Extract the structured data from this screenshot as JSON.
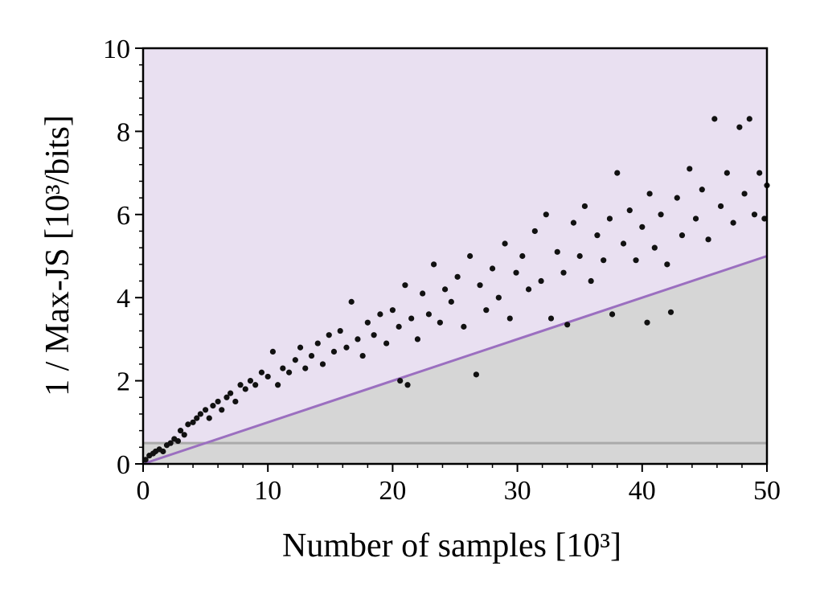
{
  "chart_data": {
    "type": "scatter",
    "x_label": "Number of samples [10³]",
    "y_label": "1 / Max-JS [10³/bits]",
    "color": "#111111",
    "region_above_color": "#e9e0f1",
    "region_below_color": "#d6d6d6",
    "reference_line": {
      "x": [
        0,
        50
      ],
      "y": [
        0,
        5
      ],
      "color": "#9b6fc0"
    },
    "threshold": {
      "value": 0.5,
      "color": "#aaaaaa"
    },
    "x": [
      0.2,
      0.5,
      0.8,
      1.0,
      1.3,
      1.6,
      1.9,
      2.2,
      2.5,
      2.8,
      3.0,
      3.3,
      3.6,
      4.0,
      4.3,
      4.6,
      5.0,
      5.3,
      5.6,
      6.0,
      6.3,
      6.7,
      7.0,
      7.4,
      7.8,
      8.2,
      8.6,
      9.0,
      9.5,
      10.0,
      10.4,
      10.8,
      11.2,
      11.7,
      12.2,
      12.6,
      13.0,
      13.5,
      14.0,
      14.4,
      14.9,
      15.3,
      15.8,
      16.3,
      16.7,
      17.2,
      17.6,
      18.0,
      18.5,
      19.0,
      19.5,
      20.0,
      20.5,
      20.6,
      21.0,
      21.2,
      21.5,
      22.0,
      22.4,
      22.9,
      23.3,
      23.8,
      24.2,
      24.7,
      25.2,
      25.7,
      26.2,
      26.7,
      27.0,
      27.5,
      28.0,
      28.5,
      29.0,
      29.4,
      29.9,
      30.4,
      30.9,
      31.4,
      31.9,
      32.3,
      32.7,
      33.2,
      33.7,
      34.0,
      34.5,
      35.0,
      35.4,
      35.9,
      36.4,
      36.9,
      37.4,
      37.6,
      38.0,
      38.5,
      39.0,
      39.5,
      40.0,
      40.4,
      40.6,
      41.0,
      41.5,
      42.0,
      42.3,
      42.8,
      43.2,
      43.8,
      44.3,
      44.8,
      45.3,
      45.8,
      46.3,
      46.8,
      47.3,
      47.8,
      48.2,
      48.6,
      49.0,
      49.4,
      49.8,
      50.0
    ],
    "values": [
      0.1,
      0.2,
      0.25,
      0.3,
      0.35,
      0.3,
      0.45,
      0.5,
      0.6,
      0.55,
      0.8,
      0.7,
      0.95,
      1.0,
      1.1,
      1.2,
      1.3,
      1.1,
      1.4,
      1.5,
      1.3,
      1.6,
      1.7,
      1.5,
      1.9,
      1.8,
      2.0,
      1.9,
      2.2,
      2.1,
      2.7,
      1.9,
      2.3,
      2.2,
      2.5,
      2.8,
      2.3,
      2.6,
      2.9,
      2.4,
      3.1,
      2.7,
      3.2,
      2.8,
      3.9,
      3.0,
      2.6,
      3.4,
      3.1,
      3.6,
      2.9,
      3.7,
      3.3,
      2.0,
      4.3,
      1.9,
      3.5,
      3.0,
      4.1,
      3.6,
      4.8,
      3.4,
      4.2,
      3.9,
      4.5,
      3.3,
      5.0,
      2.15,
      4.3,
      3.7,
      4.7,
      4.0,
      5.3,
      3.5,
      4.6,
      5.0,
      4.2,
      5.6,
      4.4,
      6.0,
      3.5,
      5.1,
      4.6,
      3.35,
      5.8,
      5.0,
      6.2,
      4.4,
      5.5,
      4.9,
      5.9,
      3.6,
      7.0,
      5.3,
      6.1,
      4.9,
      5.7,
      3.4,
      6.5,
      5.2,
      6.0,
      4.8,
      3.65,
      6.4,
      5.5,
      7.1,
      5.9,
      6.6,
      5.4,
      8.3,
      6.2,
      7.0,
      5.8,
      8.1,
      6.5,
      8.3,
      6.0,
      7.0,
      5.9,
      6.7
    ],
    "xlim": [
      0,
      50
    ],
    "ylim": [
      0,
      10
    ],
    "xticks": [
      0,
      10,
      20,
      30,
      40,
      50
    ],
    "yticks": [
      0,
      2,
      4,
      6,
      8,
      10
    ],
    "xminor_ticks": [
      2,
      4,
      6,
      8,
      12,
      14,
      16,
      18,
      22,
      24,
      26,
      28,
      32,
      34,
      36,
      38,
      42,
      44,
      46,
      48
    ],
    "yminor_ticks": [
      0.4,
      0.8,
      1.2,
      1.6,
      2.4,
      2.8,
      3.2,
      3.6,
      4.4,
      4.8,
      5.2,
      5.6,
      6.4,
      6.8,
      7.2,
      7.6,
      8.4,
      8.8,
      9.2,
      9.6
    ]
  }
}
